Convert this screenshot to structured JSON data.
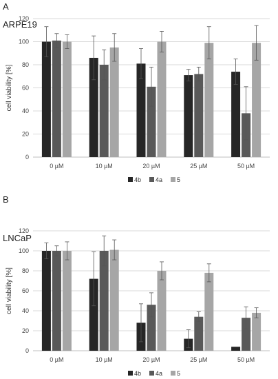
{
  "chart_data": [
    {
      "type": "bar",
      "panel_label": "A",
      "title": "ARPE19",
      "ylabel": "cell viability [%]",
      "ylim": [
        0,
        120
      ],
      "yticks": [
        0,
        20,
        40,
        60,
        80,
        100,
        120
      ],
      "grid": true,
      "legend_position": "bottom-right",
      "categories": [
        "0 µM",
        "10 µM",
        "20 µM",
        "25 µM",
        "50 µM"
      ],
      "series": [
        {
          "name": "4b",
          "color": "#262626",
          "values": [
            100,
            86,
            81,
            71,
            74
          ],
          "errors": [
            13,
            19,
            13,
            5,
            11
          ]
        },
        {
          "name": "4a",
          "color": "#595959",
          "values": [
            101,
            80,
            61,
            72,
            38
          ],
          "errors": [
            6,
            13,
            17,
            6,
            23
          ]
        },
        {
          "name": "5",
          "color": "#a6a6a6",
          "values": [
            100,
            95,
            100,
            99,
            99
          ],
          "errors": [
            6,
            12,
            9,
            14,
            15
          ]
        }
      ]
    },
    {
      "type": "bar",
      "panel_label": "B",
      "title": "LNCaP",
      "ylabel": "cell viability [%]",
      "ylim": [
        0,
        120
      ],
      "yticks": [
        0,
        20,
        40,
        60,
        80,
        100,
        120
      ],
      "grid": true,
      "legend_position": "bottom-right",
      "categories": [
        "0 µM",
        "10 µM",
        "20 µM",
        "25 µM",
        "50 µM"
      ],
      "series": [
        {
          "name": "4b",
          "color": "#262626",
          "values": [
            100,
            72,
            28,
            12,
            4
          ],
          "errors": [
            8,
            27,
            19,
            9,
            0
          ]
        },
        {
          "name": "4a",
          "color": "#595959",
          "values": [
            100,
            100,
            46,
            34,
            33
          ],
          "errors": [
            5,
            15,
            12,
            5,
            11
          ]
        },
        {
          "name": "5",
          "color": "#a6a6a6",
          "values": [
            100,
            101,
            80,
            78,
            38
          ],
          "errors": [
            9,
            10,
            9,
            9,
            5
          ]
        }
      ]
    }
  ]
}
